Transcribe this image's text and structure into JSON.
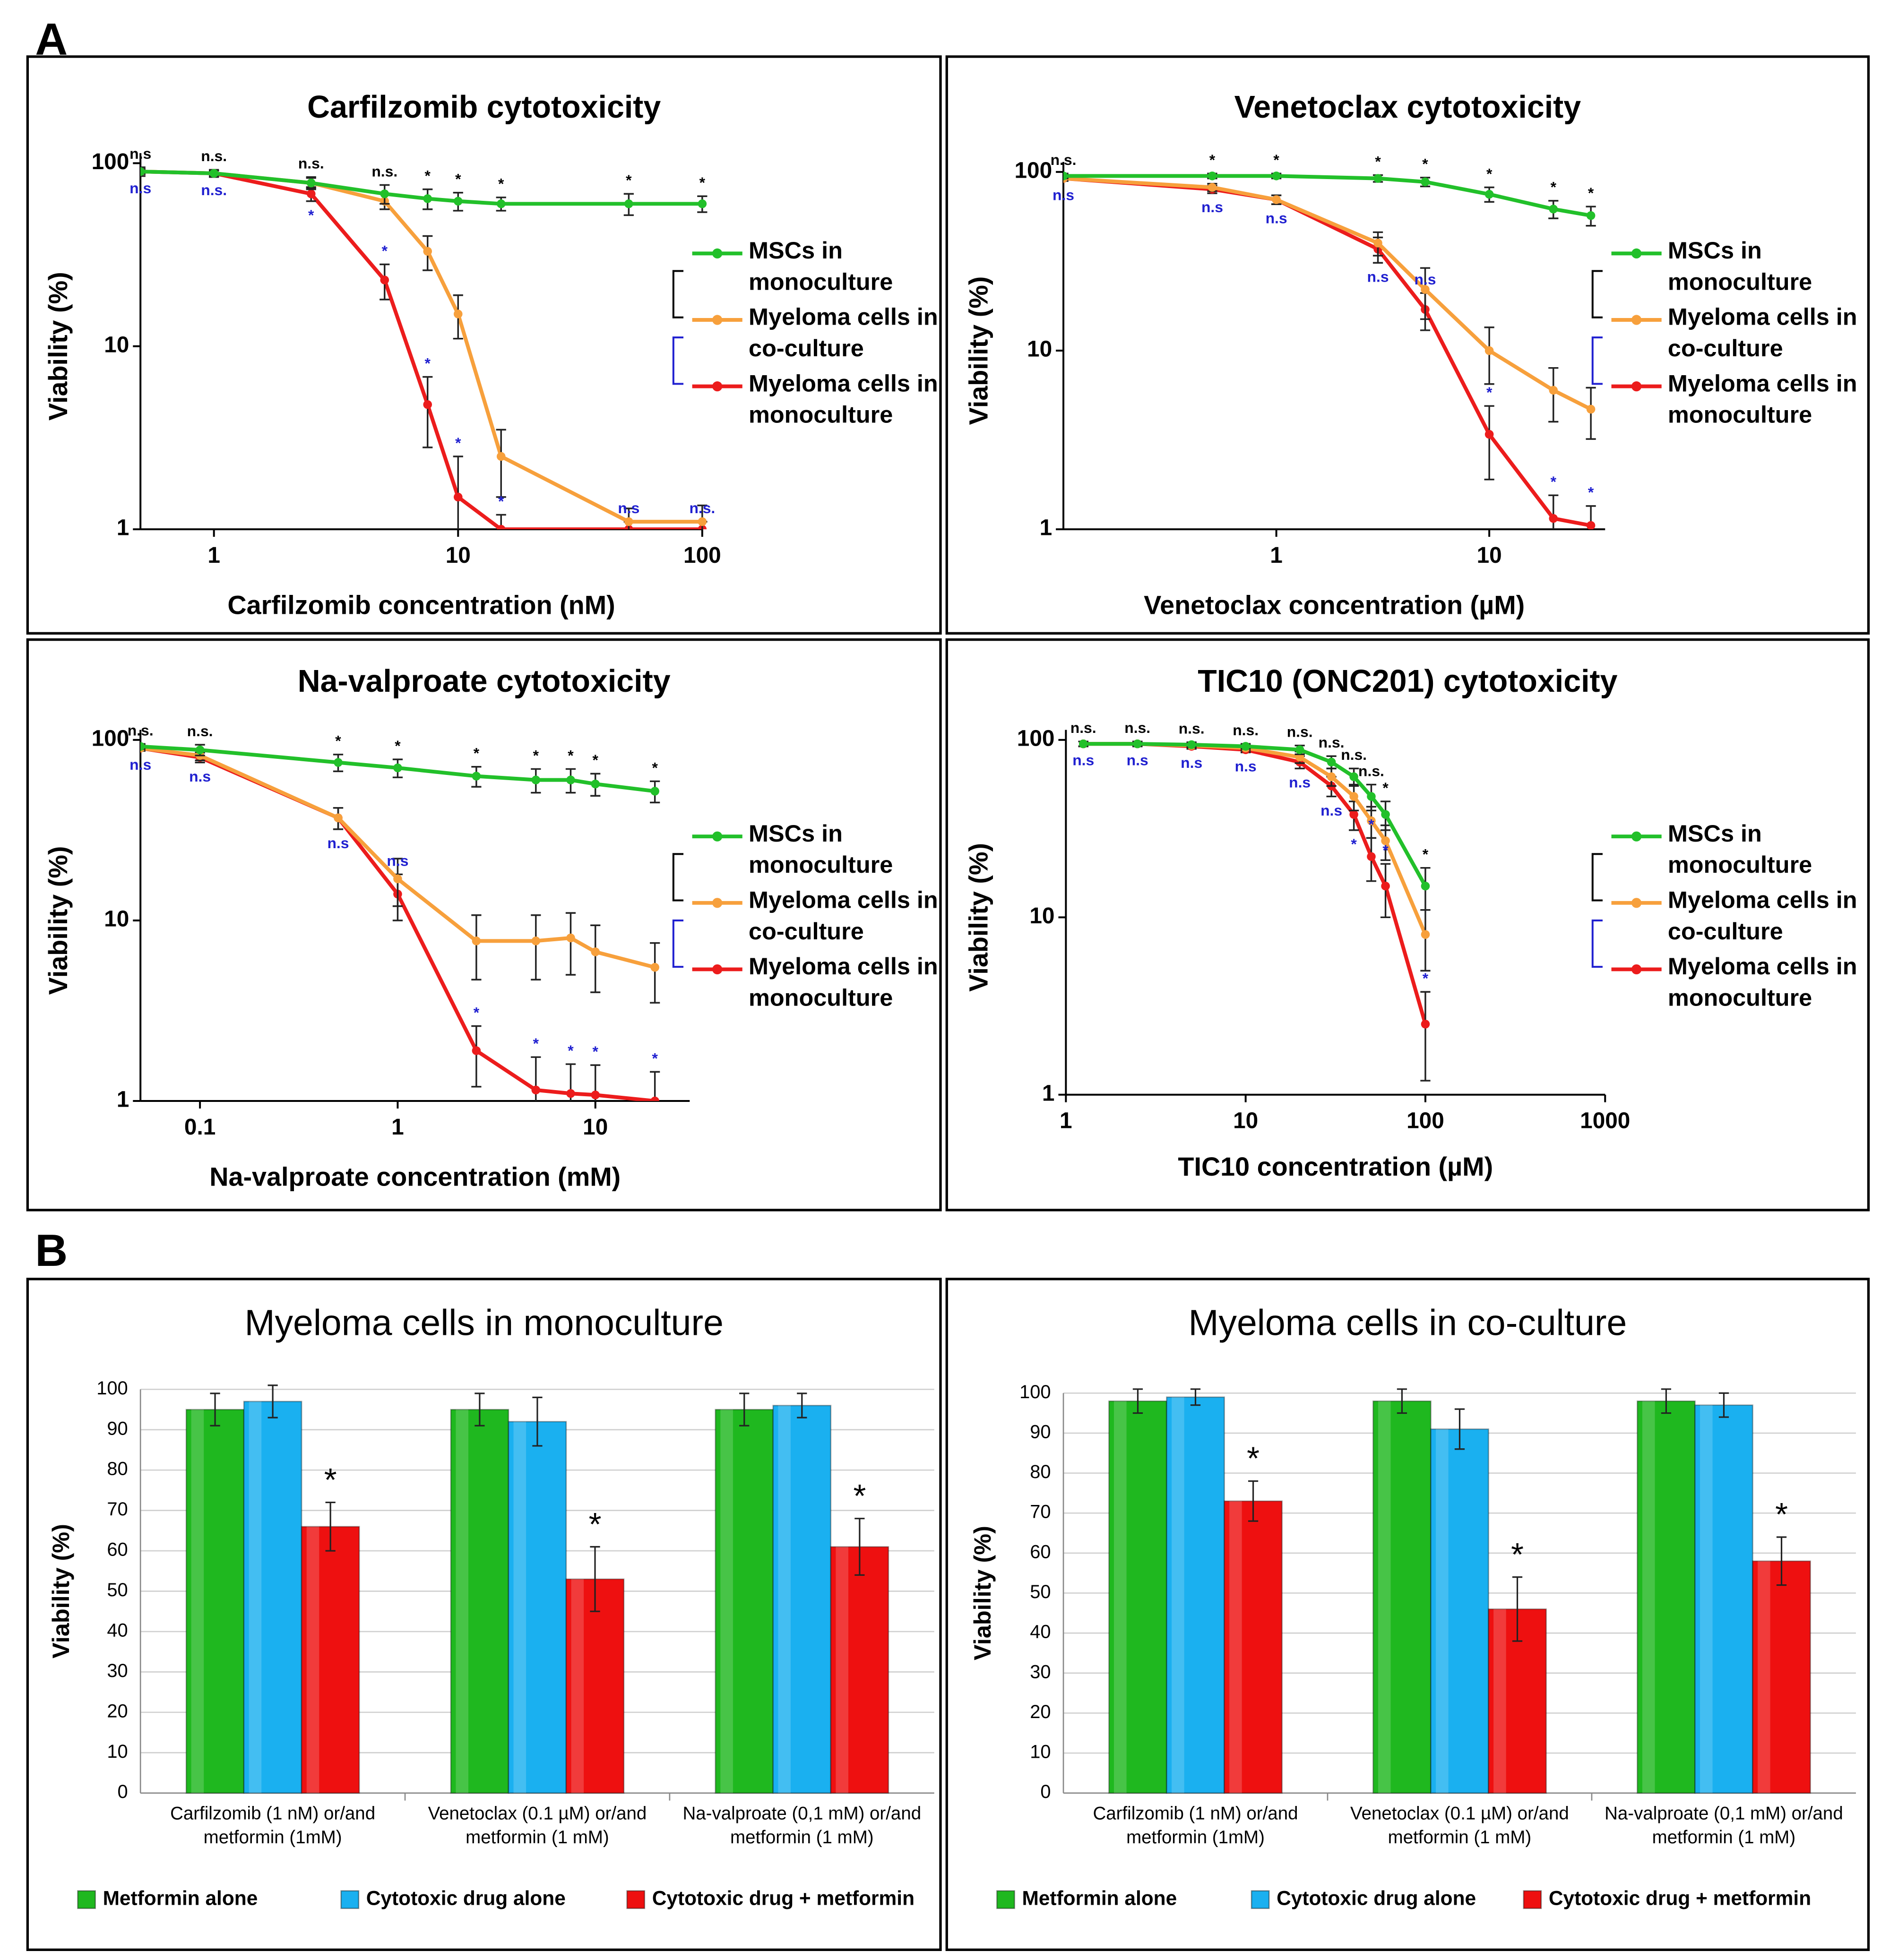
{
  "panel_labels": [
    "A",
    "B"
  ],
  "chart_data": [
    {
      "type": "line",
      "title": "Carfilzomib cytotoxicity",
      "xlabel": "Carfilzomib concentration (nM)",
      "ylabel": "Viability (%)",
      "log_x": true,
      "log_y": true,
      "x": [
        0.5,
        1,
        2.5,
        5,
        7.5,
        10,
        15,
        50,
        100
      ],
      "xlim": [
        0.5,
        100
      ],
      "ylim": [
        1,
        100
      ],
      "xticks": [
        1,
        10,
        100
      ],
      "yticks": [
        1,
        10,
        100
      ],
      "series": [
        {
          "name": "MSCs in monoculture",
          "color": "#22c02a",
          "values": [
            90,
            88,
            78,
            68,
            64,
            62,
            60,
            60,
            60
          ],
          "errors": [
            5,
            4,
            6,
            8,
            8,
            7,
            5,
            8,
            6
          ]
        },
        {
          "name": "Myeloma cells in co-culture",
          "color": "#f7a03c",
          "values": [
            90,
            88,
            78,
            62,
            33,
            15,
            2.5,
            1.1,
            1.1
          ],
          "errors": [
            3,
            3,
            5,
            6,
            7,
            4,
            1,
            0.2,
            0.25
          ]
        },
        {
          "name": "Myeloma cells in monoculture",
          "color": "#ec1c1c",
          "values": [
            90,
            88,
            68,
            23,
            4.8,
            1.5,
            1,
            1,
            1
          ],
          "errors": [
            3,
            3,
            6,
            5,
            2,
            1,
            0.2,
            0.1,
            0.1
          ]
        }
      ],
      "sig_black": [
        "n.s",
        "n.s.",
        "n.s.",
        "n.s.",
        "*",
        "*",
        "*",
        "*",
        "*"
      ],
      "sig_blue": [
        "n.s",
        "n.s.",
        "*",
        "*",
        "*",
        "*",
        "*",
        "n.s",
        "n.s."
      ]
    },
    {
      "type": "line",
      "title": "Venetoclax cytotoxicity",
      "xlabel": "Venetoclax concentration (µM)",
      "ylabel": "Viability (%)",
      "log_x": true,
      "log_y": true,
      "x": [
        0.1,
        0.5,
        1,
        3,
        5,
        10,
        20,
        30
      ],
      "xlim": [
        0.1,
        35
      ],
      "ylim": [
        1,
        100
      ],
      "xticks": [
        1,
        10
      ],
      "yticks": [
        1,
        10,
        100
      ],
      "series": [
        {
          "name": "MSCs in monoculture",
          "color": "#22c02a",
          "values": [
            95,
            95,
            95,
            92,
            88,
            75,
            62,
            57
          ],
          "errors": [
            3,
            3,
            3,
            4,
            5,
            7,
            7,
            7
          ]
        },
        {
          "name": "Myeloma cells in co-culture",
          "color": "#f7a03c",
          "values": [
            92,
            82,
            70,
            40,
            22,
            10,
            6,
            4.7
          ],
          "errors": [
            3,
            4,
            4,
            6,
            7,
            3.5,
            2,
            1.5
          ]
        },
        {
          "name": "Myeloma cells in monoculture",
          "color": "#ec1c1c",
          "values": [
            92,
            80,
            70,
            37,
            17,
            3.4,
            1.15,
            1.05
          ],
          "errors": [
            3,
            4,
            4,
            6,
            4,
            1.5,
            0.4,
            0.3
          ]
        }
      ],
      "sig_black": [
        "n.s.",
        "*",
        "*",
        "*",
        "*",
        "*",
        "*",
        "*"
      ],
      "sig_blue": [
        "n.s",
        "n.s",
        "n.s",
        "n.s",
        "n.s",
        "*",
        "*",
        "*"
      ]
    },
    {
      "type": "line",
      "title": "Na-valproate cytotoxicity",
      "xlabel": "Na-valproate concentration (mM)",
      "ylabel": "Viability (%)",
      "log_x": true,
      "log_y": true,
      "x": [
        0.05,
        0.1,
        0.5,
        1,
        2.5,
        5,
        7.5,
        10,
        20
      ],
      "xlim": [
        0.05,
        30
      ],
      "ylim": [
        1,
        100
      ],
      "xticks": [
        0.1,
        1,
        10
      ],
      "yticks": [
        1,
        10,
        100
      ],
      "series": [
        {
          "name": "MSCs in monoculture",
          "color": "#22c02a",
          "values": [
            92,
            88,
            75,
            70,
            63,
            60,
            60,
            57,
            52
          ],
          "errors": [
            3,
            6,
            8,
            8,
            8,
            9,
            9,
            8,
            7
          ]
        },
        {
          "name": "Myeloma cells in co-culture",
          "color": "#f7a03c",
          "values": [
            90,
            82,
            37,
            17,
            7.7,
            7.7,
            8,
            6.7,
            5.5
          ],
          "errors": [
            3,
            5,
            5,
            5,
            3,
            3,
            3,
            2.7,
            2
          ]
        },
        {
          "name": "Myeloma cells in monoculture",
          "color": "#ec1c1c",
          "values": [
            90,
            80,
            37,
            14,
            1.9,
            1.15,
            1.1,
            1.08,
            1
          ],
          "errors": [
            3,
            5,
            5,
            4,
            0.7,
            0.6,
            0.5,
            0.5,
            0.45
          ]
        }
      ],
      "sig_black": [
        "n.s.",
        "n.s.",
        "*",
        "*",
        "*",
        "*",
        "*",
        "*",
        "*"
      ],
      "sig_blue": [
        "n.s",
        "n.s",
        "n.s",
        "n.s",
        "*",
        "*",
        "*",
        "*",
        "*"
      ]
    },
    {
      "type": "line",
      "title": "TIC10 (ONC201) cytotoxicity",
      "xlabel": "TIC10 concentration (µM)",
      "ylabel": "Viability (%)",
      "log_x": true,
      "log_y": true,
      "x": [
        1.25,
        2.5,
        5,
        10,
        20,
        30,
        40,
        50,
        60,
        100
      ],
      "xlim": [
        1,
        1000
      ],
      "ylim": [
        1,
        100
      ],
      "xticks": [
        1,
        10,
        100,
        1000
      ],
      "yticks": [
        1,
        10,
        100
      ],
      "series": [
        {
          "name": "MSCs in monoculture",
          "color": "#22c02a",
          "values": [
            95,
            95,
            94,
            92,
            88,
            75,
            62,
            48,
            38,
            15
          ],
          "errors": [
            3,
            3,
            3,
            3,
            5,
            6,
            7,
            8,
            7,
            4
          ]
        },
        {
          "name": "Myeloma cells in co-culture",
          "color": "#f7a03c",
          "values": [
            95,
            95,
            93,
            90,
            80,
            62,
            48,
            35,
            27,
            8
          ],
          "errors": [
            3,
            3,
            3,
            3,
            6,
            7,
            8,
            7,
            6,
            3
          ]
        },
        {
          "name": "Myeloma cells in monoculture",
          "color": "#ec1c1c",
          "values": [
            95,
            95,
            92,
            88,
            75,
            55,
            38,
            22,
            15,
            2.5
          ],
          "errors": [
            3,
            3,
            3,
            3,
            6,
            7,
            7,
            6,
            5,
            1.3
          ]
        }
      ],
      "sig_black": [
        "n.s.",
        "n.s.",
        "n.s.",
        "n.s.",
        "n.s.",
        "n.s.",
        "n.s.",
        "n.s.",
        "*",
        "*"
      ],
      "sig_blue": [
        "n.s",
        "n.s",
        "n.s",
        "n.s",
        "n.s",
        "n.s",
        "*",
        "*",
        "*",
        "*"
      ]
    },
    {
      "type": "bar",
      "title": "Myeloma cells in monoculture",
      "ylabel": "Viability (%)",
      "categories": [
        "Carfilzomib (1 nM) or/and metformin (1mM)",
        "Venetoclax (0.1 µM) or/and metformin (1 mM)",
        "Na-valproate (0,1 mM) or/and metformin (1 mM)"
      ],
      "ylim": [
        0,
        100
      ],
      "yticks": [
        0,
        10,
        20,
        30,
        40,
        50,
        60,
        70,
        80,
        90,
        100
      ],
      "grid": true,
      "series": [
        {
          "name": "Metformin alone",
          "color": "#1fb81f",
          "values": [
            95,
            95,
            95
          ],
          "errors": [
            4,
            4,
            4
          ]
        },
        {
          "name": "Cytotoxic drug alone",
          "color": "#1ab0f0",
          "values": [
            97,
            92,
            96
          ],
          "errors": [
            4,
            6,
            3
          ]
        },
        {
          "name": "Cytotoxic drug + metformin",
          "color": "#ee1010",
          "values": [
            66,
            53,
            61
          ],
          "errors": [
            6,
            8,
            7
          ]
        }
      ],
      "annotations": [
        "*",
        "*",
        "*"
      ]
    },
    {
      "type": "bar",
      "title": "Myeloma cells in co-culture",
      "ylabel": "Viability (%)",
      "categories": [
        "Carfilzomib (1 nM) or/and metformin (1mM)",
        "Venetoclax (0.1 µM) or/and metformin (1 mM)",
        "Na-valproate (0,1 mM) or/and metformin (1 mM)"
      ],
      "ylim": [
        0,
        100
      ],
      "yticks": [
        0,
        10,
        20,
        30,
        40,
        50,
        60,
        70,
        80,
        90,
        100
      ],
      "grid": true,
      "series": [
        {
          "name": "Metformin alone",
          "color": "#1fb81f",
          "values": [
            98,
            98,
            98
          ],
          "errors": [
            3,
            3,
            3
          ]
        },
        {
          "name": "Cytotoxic drug alone",
          "color": "#1ab0f0",
          "values": [
            99,
            91,
            97
          ],
          "errors": [
            2,
            5,
            3
          ]
        },
        {
          "name": "Cytotoxic drug + metformin",
          "color": "#ee1010",
          "values": [
            73,
            46,
            58
          ],
          "errors": [
            5,
            8,
            6
          ]
        }
      ],
      "annotations": [
        "*",
        "*",
        "*"
      ]
    }
  ]
}
